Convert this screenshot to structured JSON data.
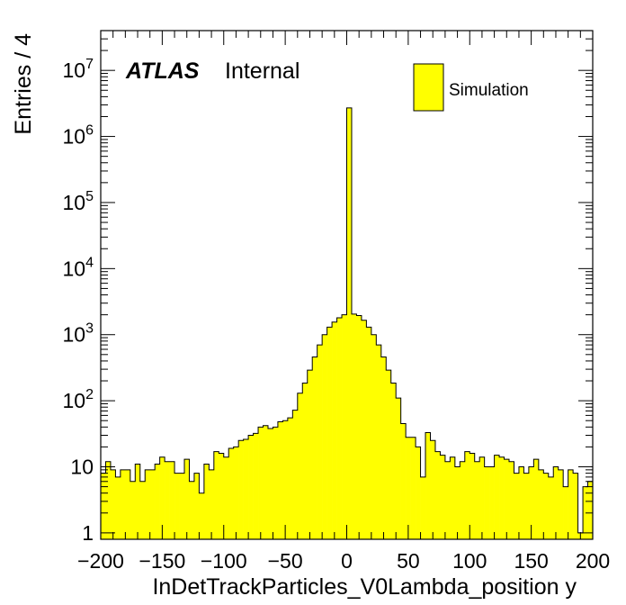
{
  "chart_data": {
    "type": "histogram",
    "title": "",
    "xlabel": "InDetTrackParticles_V0Lambda_position y",
    "ylabel": "Entries / 4",
    "xlim": [
      -200,
      200
    ],
    "ylim": [
      0.8,
      40000000
    ],
    "yscale": "log",
    "grid": false,
    "bin_width": 4,
    "x_ticks": [
      -200,
      -150,
      -100,
      -50,
      0,
      50,
      100,
      150,
      200
    ],
    "x_tick_labels": [
      "−200",
      "−150",
      "−100",
      "−50",
      "0",
      "50",
      "100",
      "150",
      "200"
    ],
    "y_tick_labels": [
      {
        "value": 1,
        "base": "1",
        "exp": ""
      },
      {
        "value": 10,
        "base": "10",
        "exp": ""
      },
      {
        "value": 100,
        "base": "10",
        "exp": "2"
      },
      {
        "value": 1000,
        "base": "10",
        "exp": "3"
      },
      {
        "value": 10000,
        "base": "10",
        "exp": "4"
      },
      {
        "value": 100000,
        "base": "10",
        "exp": "5"
      },
      {
        "value": 1000000,
        "base": "10",
        "exp": "6"
      },
      {
        "value": 10000000,
        "base": "10",
        "exp": "7"
      }
    ],
    "label_atlas": "ATLAS",
    "label_status": "Internal",
    "legend_position": "top-right",
    "series": [
      {
        "name": "Simulation",
        "color": "#ffff00",
        "edge_color": "#000000",
        "bin_low_edges": [
          -200,
          -196,
          -192,
          -188,
          -184,
          -180,
          -176,
          -172,
          -168,
          -164,
          -160,
          -156,
          -152,
          -148,
          -144,
          -140,
          -136,
          -132,
          -128,
          -124,
          -120,
          -116,
          -112,
          -108,
          -104,
          -100,
          -96,
          -92,
          -88,
          -84,
          -80,
          -76,
          -72,
          -68,
          -64,
          -60,
          -56,
          -52,
          -48,
          -44,
          -40,
          -36,
          -32,
          -28,
          -24,
          -20,
          -16,
          -12,
          -8,
          -4,
          0,
          4,
          8,
          12,
          16,
          20,
          24,
          28,
          32,
          36,
          40,
          44,
          48,
          52,
          56,
          60,
          64,
          68,
          72,
          76,
          80,
          84,
          88,
          92,
          96,
          100,
          104,
          108,
          112,
          116,
          120,
          124,
          128,
          132,
          136,
          140,
          144,
          148,
          152,
          156,
          160,
          164,
          168,
          172,
          176,
          180,
          184,
          188,
          192,
          196
        ],
        "values": [
          8,
          12,
          9,
          7,
          9,
          9,
          6,
          11,
          6,
          9,
          9,
          11,
          14,
          12,
          12,
          8,
          8,
          13,
          6,
          8,
          4,
          11,
          9,
          17,
          16,
          14,
          19,
          20,
          25,
          26,
          30,
          32,
          40,
          42,
          38,
          40,
          48,
          50,
          55,
          72,
          130,
          185,
          290,
          460,
          700,
          1000,
          1300,
          1550,
          1800,
          2000,
          2700000,
          2050,
          1950,
          1650,
          1300,
          1000,
          700,
          460,
          290,
          185,
          110,
          45,
          28,
          28,
          20,
          7,
          33,
          25,
          17,
          15,
          12,
          14,
          10,
          12,
          17,
          16,
          12,
          14,
          10,
          10,
          15,
          14,
          13,
          12,
          8,
          10,
          8,
          10,
          13,
          9,
          8,
          7,
          10,
          9,
          5,
          9,
          8,
          1,
          5,
          6
        ]
      }
    ]
  }
}
